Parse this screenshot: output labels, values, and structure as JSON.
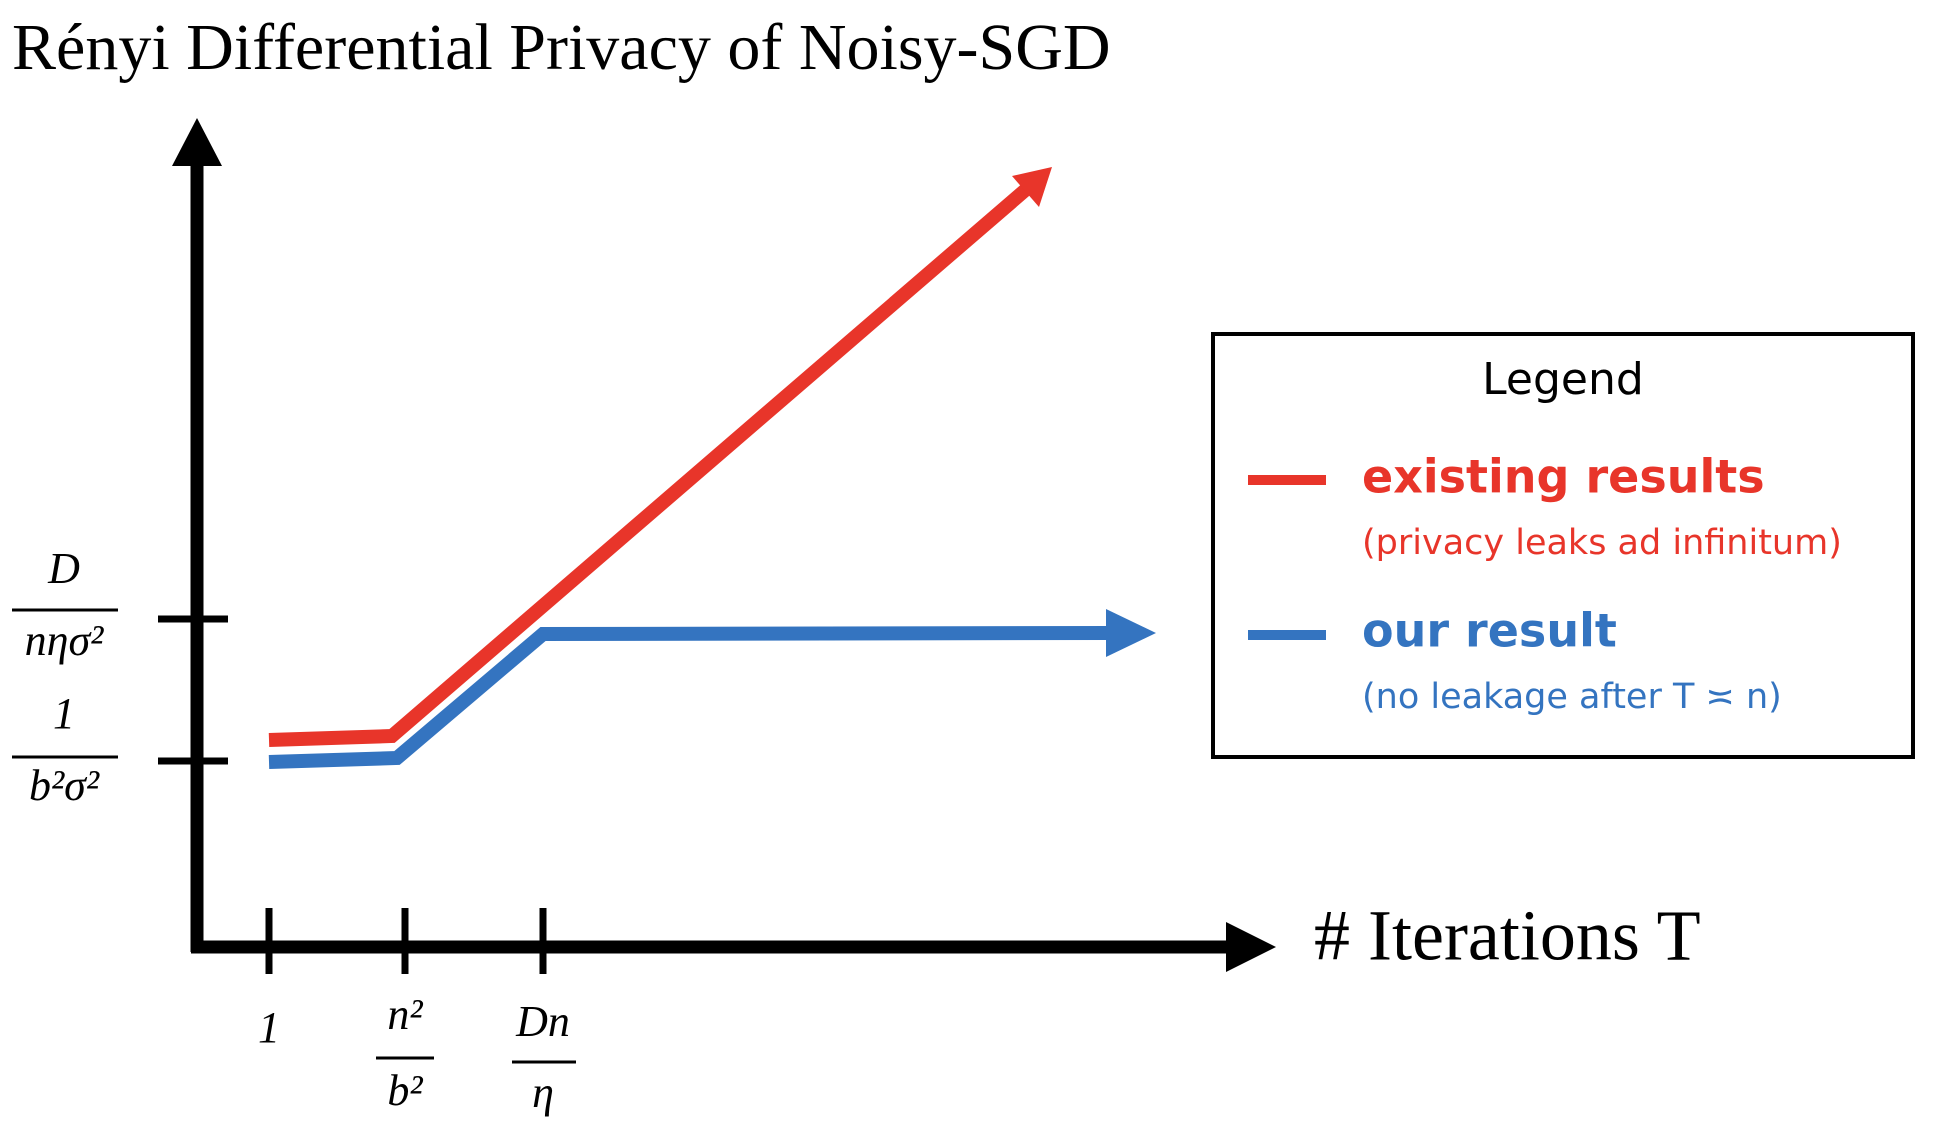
{
  "title": "Rényi Differential Privacy of Noisy-SGD",
  "y_axis": {
    "ticks": [
      {
        "numerator": "D",
        "denominator": "nησ²"
      },
      {
        "numerator": "1",
        "denominator": "b²σ²"
      }
    ]
  },
  "x_axis": {
    "label": "# Iterations T",
    "ticks": [
      {
        "label": "1"
      },
      {
        "numerator": "n²",
        "denominator": "b²"
      },
      {
        "numerator": "Dn",
        "denominator": "η"
      }
    ]
  },
  "legend": {
    "title": "Legend",
    "items": [
      {
        "label": "existing results",
        "note": "(privacy leaks ad infinitum)"
      },
      {
        "label": "our result",
        "note": "(no leakage after T ≍ n)"
      }
    ]
  }
}
